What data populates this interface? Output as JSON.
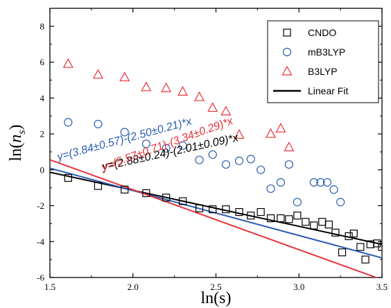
{
  "chart_data": {
    "type": "scatter",
    "xlabel": "ln(s)",
    "ylabel": "ln(n_s)",
    "xlim": [
      1.5,
      3.5
    ],
    "ylim": [
      -6,
      9
    ],
    "x_ticks": [
      "1.5",
      "2.0",
      "2.5",
      "3.0",
      "3.5"
    ],
    "y_ticks": [
      "-6",
      "-4",
      "-2",
      "0",
      "2",
      "4",
      "6",
      "8"
    ],
    "legend_position": "top-right",
    "series": [
      {
        "name": "CNDO",
        "marker": "square",
        "color": "#000000",
        "points": [
          [
            1.61,
            -0.45
          ],
          [
            1.79,
            -0.9
          ],
          [
            1.95,
            -1.1
          ],
          [
            2.08,
            -1.3
          ],
          [
            2.2,
            -1.55
          ],
          [
            2.3,
            -1.75
          ],
          [
            2.4,
            -2.15
          ],
          [
            2.48,
            -2.2
          ],
          [
            2.56,
            -2.2
          ],
          [
            2.64,
            -2.35
          ],
          [
            2.71,
            -2.55
          ],
          [
            2.77,
            -2.35
          ],
          [
            2.83,
            -2.7
          ],
          [
            2.89,
            -2.7
          ],
          [
            2.94,
            -2.75
          ],
          [
            2.99,
            -2.55
          ],
          [
            3.04,
            -2.9
          ],
          [
            3.09,
            -3.1
          ],
          [
            3.14,
            -2.9
          ],
          [
            3.18,
            -3.05
          ],
          [
            3.22,
            -3.5
          ],
          [
            3.26,
            -4.6
          ],
          [
            3.3,
            -3.7
          ],
          [
            3.33,
            -3.55
          ],
          [
            3.37,
            -4.3
          ],
          [
            3.4,
            -5.0
          ],
          [
            3.43,
            -4.15
          ],
          [
            3.47,
            -4.1
          ],
          [
            3.5,
            -4.3
          ]
        ]
      },
      {
        "name": "mB3LYP",
        "marker": "circle",
        "color": "#2a5db0",
        "points": [
          [
            1.61,
            2.65
          ],
          [
            1.79,
            2.55
          ],
          [
            1.95,
            2.1
          ],
          [
            2.08,
            1.45
          ],
          [
            2.2,
            1.2
          ],
          [
            2.3,
            1.35
          ],
          [
            2.4,
            0.55
          ],
          [
            2.48,
            0.85
          ],
          [
            2.56,
            0.3
          ],
          [
            2.64,
            0.5
          ],
          [
            2.71,
            0.6
          ],
          [
            2.77,
            0.0
          ],
          [
            2.83,
            -1.05
          ],
          [
            2.89,
            -0.7
          ],
          [
            2.94,
            0.3
          ],
          [
            2.99,
            -1.8
          ],
          [
            3.09,
            -0.7
          ],
          [
            3.13,
            -0.7
          ],
          [
            3.17,
            -0.7
          ],
          [
            3.21,
            -1.1
          ],
          [
            3.25,
            -1.8
          ]
        ]
      },
      {
        "name": "B3LYP",
        "marker": "triangle",
        "color": "#e8333b",
        "points": [
          [
            1.61,
            5.9
          ],
          [
            1.79,
            5.3
          ],
          [
            1.95,
            5.15
          ],
          [
            2.08,
            4.6
          ],
          [
            2.2,
            4.55
          ],
          [
            2.3,
            4.35
          ],
          [
            2.4,
            4.05
          ],
          [
            2.48,
            3.45
          ],
          [
            2.56,
            3.25
          ],
          [
            2.64,
            1.95
          ],
          [
            2.83,
            2.0
          ],
          [
            2.89,
            2.3
          ],
          [
            2.94,
            1.25
          ]
        ]
      },
      {
        "name": "Linear Fit",
        "type": "line",
        "color": "#000000"
      }
    ],
    "fits": [
      {
        "series": "CNDO",
        "intercept": 2.88,
        "slope": -2.01,
        "color": "#000000",
        "equation": "y=(2.88±0.24)-(2.01±0.09)*x"
      },
      {
        "series": "mB3LYP",
        "intercept": 3.84,
        "slope": -2.5,
        "color": "#2a5db0",
        "equation": "y=(3.84±0.57)-(2.50±0.21)*x"
      },
      {
        "series": "B3LYP",
        "intercept": 5.57,
        "slope": -3.34,
        "color": "#e8333b",
        "equation": "y=(5.57±0.71)-(3.34±0.29)*x"
      }
    ]
  }
}
